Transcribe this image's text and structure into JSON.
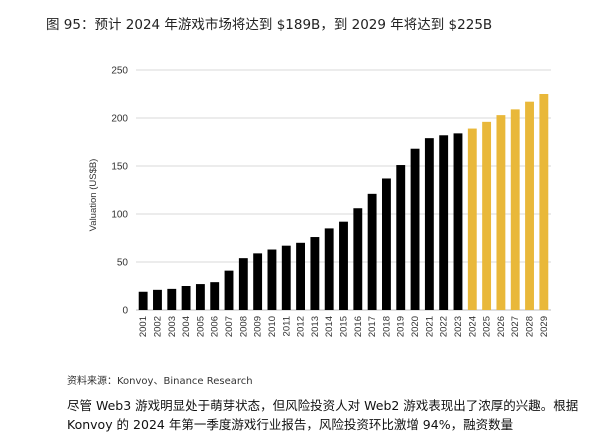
{
  "figure_title": "图 95：预计 2024 年游戏市场将达到 $189B，到 2029 年将达到 $225B",
  "source": "资料来源：Konvoy、Binance Research",
  "body_lines": [
    "尽管 Web3 游戏明显处于萌芽状态，但风险投资人对 Web2 游戏表现出了浓厚的兴趣。根据",
    "Konvoy 的 2024 年第一季度游戏行业报告，风险投资环比激增 94%，融资数量"
  ],
  "colors": {
    "historical": "#000000",
    "forecast": "#e9b83a",
    "grid": "#d9d9d9",
    "axis_text": "#333333"
  },
  "chart_data": {
    "type": "bar",
    "title": "",
    "xlabel": "",
    "ylabel": "Valuation (US$B)",
    "ylim": [
      0,
      250
    ],
    "yticks": [
      0,
      50,
      100,
      150,
      200,
      250
    ],
    "grid": true,
    "categories": [
      "2001",
      "2002",
      "2003",
      "2004",
      "2005",
      "2006",
      "2007",
      "2008",
      "2009",
      "2010",
      "2011",
      "2012",
      "2013",
      "2014",
      "2015",
      "2016",
      "2017",
      "2018",
      "2019",
      "2020",
      "2021",
      "2022",
      "2023",
      "2024",
      "2025",
      "2026",
      "2027",
      "2028",
      "2029"
    ],
    "series": [
      {
        "kind": "historical",
        "values": [
          19,
          21,
          22,
          25,
          27,
          29,
          41,
          54,
          59,
          63,
          67,
          70,
          76,
          85,
          92,
          106,
          121,
          137,
          151,
          168,
          179,
          182,
          184,
          null,
          null,
          null,
          null,
          null,
          null
        ]
      },
      {
        "kind": "forecast",
        "values": [
          null,
          null,
          null,
          null,
          null,
          null,
          null,
          null,
          null,
          null,
          null,
          null,
          null,
          null,
          null,
          null,
          null,
          null,
          null,
          null,
          null,
          null,
          null,
          189,
          196,
          203,
          209,
          217,
          225
        ]
      }
    ]
  }
}
